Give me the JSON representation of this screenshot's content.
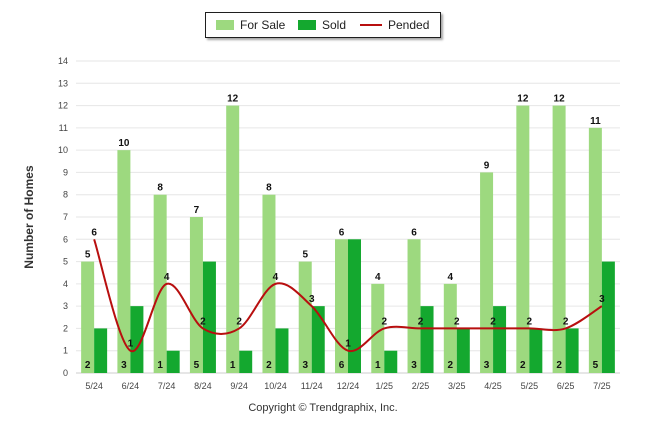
{
  "legend": {
    "for_sale": "For Sale",
    "sold": "Sold",
    "pended": "Pended"
  },
  "copyright": "Copyright © Trendgraphix, Inc.",
  "colors": {
    "for_sale": "#9dd97f",
    "sold": "#14a82f",
    "pended": "#b80f0f",
    "grid": "#e6e6e6"
  },
  "chart_data": {
    "type": "bar",
    "title": "",
    "xlabel": "",
    "ylabel": "Number of Homes",
    "ylim": [
      0,
      14
    ],
    "yticks": [
      0,
      1,
      2,
      3,
      4,
      5,
      6,
      7,
      8,
      9,
      10,
      11,
      12,
      13,
      14
    ],
    "grid": true,
    "legend_position": "top-center",
    "categories": [
      "5/24",
      "6/24",
      "7/24",
      "8/24",
      "9/24",
      "10/24",
      "11/24",
      "12/24",
      "1/25",
      "2/25",
      "3/25",
      "4/25",
      "5/25",
      "6/25",
      "7/25"
    ],
    "series": [
      {
        "name": "For Sale",
        "type": "bar",
        "values": [
          5,
          10,
          8,
          7,
          12,
          8,
          5,
          6,
          4,
          6,
          4,
          9,
          12,
          12,
          11
        ]
      },
      {
        "name": "Sold",
        "type": "bar",
        "values": [
          2,
          3,
          1,
          5,
          1,
          2,
          3,
          6,
          1,
          3,
          2,
          3,
          2,
          2,
          5
        ]
      },
      {
        "name": "Pended",
        "type": "line",
        "values": [
          6,
          1,
          4,
          2,
          2,
          4,
          3,
          1,
          2,
          2,
          2,
          2,
          2,
          2,
          3
        ]
      }
    ]
  }
}
